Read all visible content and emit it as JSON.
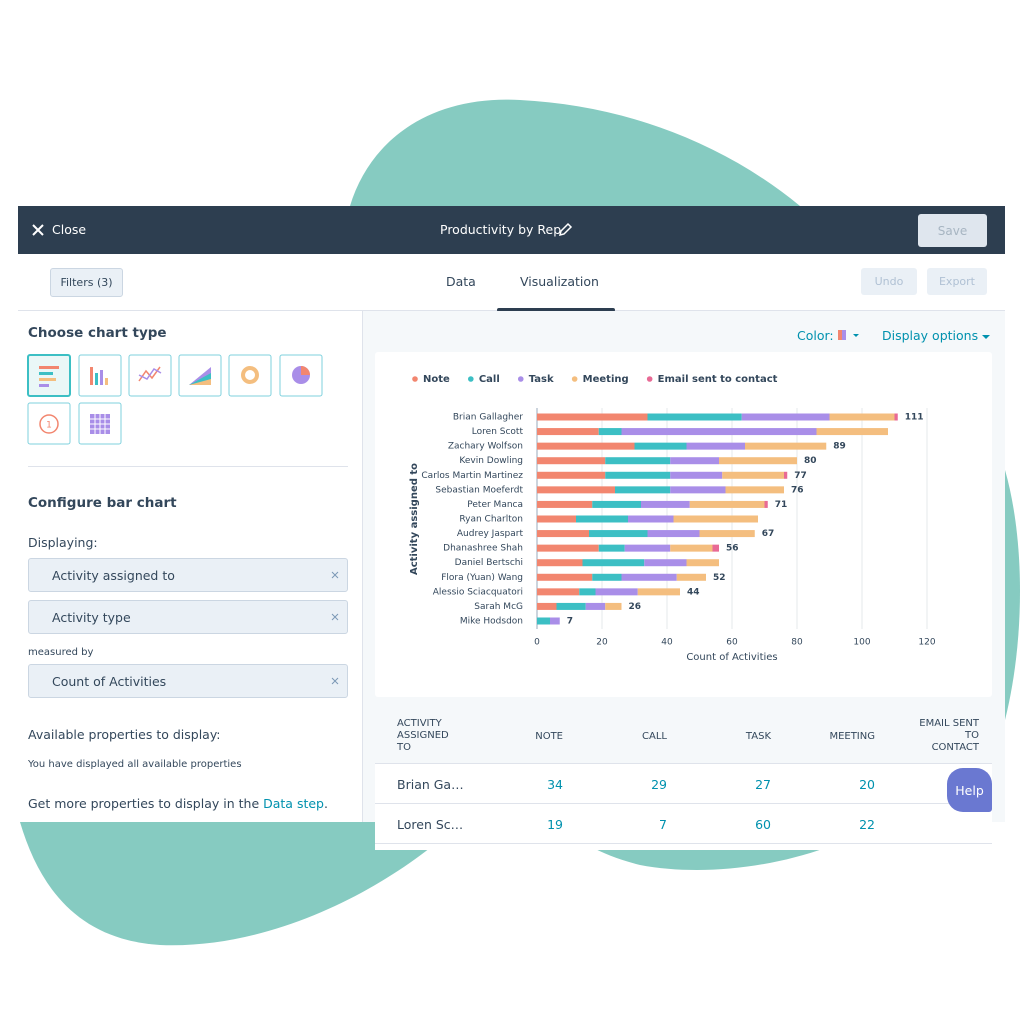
{
  "header": {
    "close": "Close",
    "title": "Productivity by Rep",
    "save": "Save"
  },
  "toolbar": {
    "filters": "Filters (3)",
    "tabs": [
      "Data",
      "Visualization"
    ],
    "undo": "Undo",
    "export": "Export"
  },
  "left_panel": {
    "choose_title": "Choose chart type",
    "configure_title": "Configure bar chart",
    "displaying": "Displaying:",
    "dimensions": [
      "Activity assigned to",
      "Activity type"
    ],
    "measured_by": "measured by",
    "measure": "Count of Activities",
    "available_title": "Available properties to display:",
    "available_note": "You have displayed all available properties",
    "more": {
      "text": "Get more properties to display in the",
      "link": "Data step",
      "end": "."
    }
  },
  "chart_options": {
    "color": "Color:",
    "display": "Display options"
  },
  "chart_data": {
    "type": "bar",
    "orientation": "horizontal",
    "stacked": true,
    "categories": [
      "Brian Gallagher",
      "Loren Scott",
      "Zachary Wolfson",
      "Kevin Dowling",
      "Carlos Martin Martinez",
      "Sebastian Moeferdt",
      "Peter Manca",
      "Ryan Charlton",
      "Audrey Jaspart",
      "Dhanashree Shah",
      "Daniel Bertschi",
      "Flora (Yuan) Wang",
      "Alessio Sciacquatori",
      "Sarah McG",
      "Mike Hodsdon"
    ],
    "series": [
      {
        "name": "Note",
        "color": "#f2866f",
        "values": [
          34,
          19,
          30,
          21,
          21,
          24,
          17,
          12,
          16,
          19,
          14,
          17,
          13,
          6,
          0
        ]
      },
      {
        "name": "Call",
        "color": "#3cbfc4",
        "values": [
          29,
          7,
          16,
          20,
          20,
          17,
          15,
          16,
          18,
          8,
          19,
          9,
          5,
          9,
          4
        ]
      },
      {
        "name": "Task",
        "color": "#a98ee8",
        "values": [
          27,
          60,
          18,
          15,
          16,
          17,
          15,
          14,
          16,
          14,
          13,
          17,
          13,
          6,
          3
        ]
      },
      {
        "name": "Meeting",
        "color": "#f4be7f",
        "values": [
          20,
          22,
          25,
          24,
          19,
          18,
          23,
          26,
          17,
          13,
          10,
          9,
          13,
          5,
          0
        ]
      },
      {
        "name": "Email sent to contact",
        "color": "#e86a95",
        "values": [
          1,
          0,
          0,
          0,
          1,
          0,
          1,
          0,
          0,
          2,
          0,
          0,
          0,
          0,
          0
        ]
      }
    ],
    "total_labels": [
      111,
      null,
      89,
      80,
      77,
      76,
      71,
      null,
      67,
      56,
      null,
      52,
      44,
      26,
      7
    ],
    "xlim": [
      0,
      120
    ],
    "xticks": [
      0,
      20,
      40,
      60,
      80,
      100,
      120
    ],
    "grid": true,
    "xlabel": "Count of Activities",
    "ylabel": "Activity assigned to"
  },
  "table": {
    "headers": [
      "ACTIVITY ASSIGNED TO",
      "NOTE",
      "CALL",
      "TASK",
      "MEETING",
      "EMAIL SENT TO CONTACT"
    ],
    "rows": [
      [
        "Brian Ga…",
        34,
        29,
        27,
        20
      ],
      [
        "Loren Sc…",
        19,
        7,
        60,
        22
      ]
    ]
  },
  "help": "Help"
}
